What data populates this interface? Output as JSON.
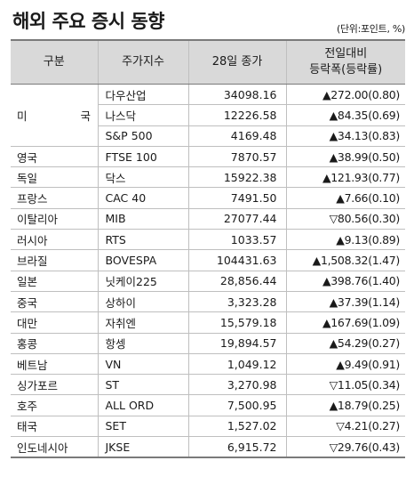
{
  "title": "해외 주요 증시 동향",
  "unit": "(단위:포인트, %)",
  "headers": {
    "country": "구분",
    "index": "주가지수",
    "close": "28일 종가",
    "change_line1": "전일대비",
    "change_line2": "등락폭(등락률)"
  },
  "rows": [
    {
      "country": "미 국",
      "index": "다우산업",
      "close": "34098.16",
      "change": "▲272.00(0.80)"
    },
    {
      "country": "",
      "index": "나스닥",
      "close": "12226.58",
      "change": "▲84.35(0.69)"
    },
    {
      "country": "",
      "index": "S&P 500",
      "close": "4169.48",
      "change": "▲34.13(0.83)"
    },
    {
      "country": "영국",
      "index": "FTSE 100",
      "close": "7870.57",
      "change": "▲38.99(0.50)"
    },
    {
      "country": "독일",
      "index": "닥스",
      "close": "15922.38",
      "change": "▲121.93(0.77)"
    },
    {
      "country": "프랑스",
      "index": "CAC 40",
      "close": "7491.50",
      "change": "▲7.66(0.10)"
    },
    {
      "country": "이탈리아",
      "index": "MIB",
      "close": "27077.44",
      "change": "▽80.56(0.30)"
    },
    {
      "country": "러시아",
      "index": "RTS",
      "close": "1033.57",
      "change": "▲9.13(0.89)"
    },
    {
      "country": "브라질",
      "index": "BOVESPA",
      "close": "104431.63",
      "change": "▲1,508.32(1.47)"
    },
    {
      "country": "일본",
      "index": "닛케이225",
      "close": "28,856.44",
      "change": "▲398.76(1.40)"
    },
    {
      "country": "중국",
      "index": "상하이",
      "close": "3,323.28",
      "change": "▲37.39(1.14)"
    },
    {
      "country": "대만",
      "index": "자취엔",
      "close": "15,579.18",
      "change": "▲167.69(1.09)"
    },
    {
      "country": "홍콩",
      "index": "항셍",
      "close": "19,894.57",
      "change": "▲54.29(0.27)"
    },
    {
      "country": "베트남",
      "index": "VN",
      "close": "1,049.12",
      "change": "▲9.49(0.91)"
    },
    {
      "country": "싱가포르",
      "index": "ST",
      "close": "3,270.98",
      "change": "▽11.05(0.34)"
    },
    {
      "country": "호주",
      "index": "ALL ORD",
      "close": "7,500.95",
      "change": "▲18.79(0.25)"
    },
    {
      "country": "태국",
      "index": "SET",
      "close": "1,527.02",
      "change": "▽4.21(0.27)"
    },
    {
      "country": "인도네시아",
      "index": "JKSE",
      "close": "6,915.72",
      "change": "▽29.76(0.43)"
    }
  ]
}
